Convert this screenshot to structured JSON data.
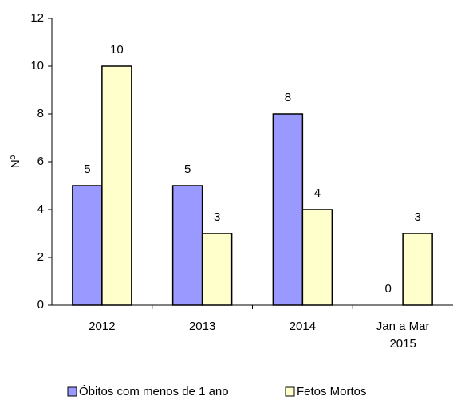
{
  "chart_data": {
    "type": "bar",
    "y_label": "Nº",
    "categories": [
      "2012",
      "2013",
      "2014",
      "Jan a Mar 2015"
    ],
    "series": [
      {
        "name": "Óbitos com menos de 1 ano",
        "color": "#9999ff",
        "values": [
          5,
          5,
          8,
          0
        ]
      },
      {
        "name": "Fetos Mortos",
        "color": "#ffffcc",
        "values": [
          10,
          3,
          4,
          3
        ]
      }
    ],
    "ylim": [
      0,
      12
    ],
    "yticks": [
      0,
      2,
      4,
      6,
      8,
      10,
      12
    ],
    "grid": false,
    "legend": "bottom"
  }
}
